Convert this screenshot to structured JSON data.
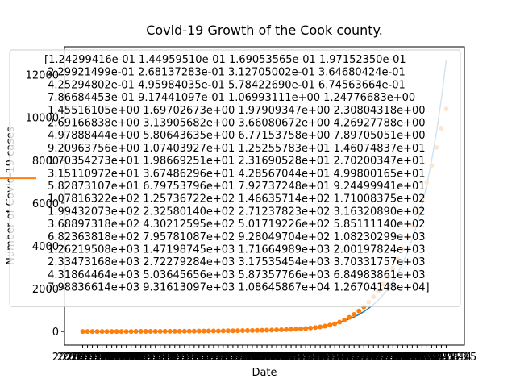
{
  "chart_data": {
    "type": "line",
    "title": "Covid-19 Growth of the Cook county.",
    "x_label": "Date",
    "y_label": "Number of Covid-19 cases",
    "categories": [
      "2020-03-01",
      "2020-03-02",
      "2020-03-03",
      "2020-03-04",
      "2020-03-05",
      "2020-03-06",
      "2020-03-07",
      "2020-03-08",
      "2020-03-09",
      "2020-03-10",
      "2020-03-11",
      "2020-03-12",
      "2020-03-13",
      "2020-03-14",
      "2020-03-15",
      "2020-03-16",
      "2020-03-17",
      "2020-03-18",
      "2020-03-19",
      "2020-03-20",
      "2020-03-21",
      "2020-03-22",
      "2020-03-23",
      "2020-03-24",
      "2020-03-25",
      "2020-03-26",
      "2020-03-27",
      "2020-03-28",
      "2020-03-29",
      "2020-03-30",
      "2020-03-31",
      "2020-04-01",
      "2020-04-02",
      "2020-04-03",
      "2020-04-04",
      "2020-04-05",
      "2020-04-06",
      "2020-04-07",
      "2020-04-08",
      "2020-04-09",
      "2020-04-10",
      "2020-04-11",
      "2020-04-12",
      "2020-04-13",
      "2020-04-14",
      "2020-04-15",
      "2020-04-16",
      "2020-04-17",
      "2020-04-18",
      "2020-04-19",
      "2020-04-20",
      "2020-04-21",
      "2020-04-22",
      "2020-04-23",
      "2020-04-24",
      "2020-04-25",
      "2020-04-26",
      "2020-04-27",
      "2020-04-28",
      "2020-04-29",
      "2020-04-30",
      "2020-05-01",
      "2020-05-02",
      "2020-05-03",
      "2020-05-04",
      "2020-05-05",
      "2020-05-06",
      "2020-05-07",
      "2020-05-08",
      "2020-05-09",
      "2020-05-10",
      "2020-05-11",
      "2020-05-12",
      "2020-05-13",
      "2020-05-14",
      "2020-05-15"
    ],
    "series": [
      {
        "type": "line",
        "color": "#1f77b4",
        "values": [
          0.124299416,
          0.14495951,
          0.169053565,
          0.19715235,
          0.229921499,
          0.268137283,
          0.312705002,
          0.364680424,
          0.425294802,
          0.495984035,
          0.57842269,
          0.674563664,
          0.786684453,
          0.917441097,
          1.06993111,
          1.24776683,
          1.45516105,
          1.69702673,
          1.97909347,
          2.30804318,
          2.69166838,
          3.13905682,
          3.66080672,
          4.26927788,
          4.97888444,
          5.80643635,
          6.77153758,
          7.89705051,
          9.20963756,
          10.7403927,
          12.5255783,
          14.6074837,
          17.0354273,
          19.8669251,
          23.1690528,
          27.0200347,
          31.5110972,
          36.7486296,
          42.8567044,
          49.9800165,
          58.2873107,
          67.9753796,
          79.2737248,
          92.4499941,
          107.816322,
          125.736722,
          146.635714,
          171.008375,
          199.432073,
          232.58014,
          271.237823,
          316.32089,
          368.897318,
          430.212595,
          501.719226,
          585.11114,
          682.363818,
          795.781087,
          928.049704,
          1082.30299,
          1262.19508,
          1471.98745,
          1716.64989,
          2001.97824,
          2334.73168,
          2722.79284,
          3175.35454,
          3703.31757,
          4318.64464,
          5036.45656,
          5873.57766,
          6849.83861,
          7988.36614,
          9316.13097,
          10864.5867,
          12670.4148
        ]
      },
      {
        "type": "scatter",
        "color": "#ff7f0e",
        "values": [
          0,
          0,
          0,
          1,
          1,
          1,
          2,
          2,
          3,
          3,
          4,
          5,
          5,
          6,
          7,
          8,
          9,
          10,
          11,
          12,
          13,
          14,
          16,
          18,
          20,
          22,
          24,
          26,
          28,
          31,
          34,
          37,
          40,
          43,
          47,
          51,
          55,
          60,
          65,
          70,
          76,
          82,
          90,
          100,
          110,
          125,
          140,
          160,
          185,
          215,
          250,
          300,
          360,
          440,
          540,
          660,
          800,
          960,
          1150,
          1370,
          1620,
          1900,
          2210,
          2560,
          2950,
          3380,
          3860,
          4380,
          4950,
          5570,
          6240,
          6970,
          7760,
          8600,
          9500,
          10400
        ]
      }
    ],
    "legend": {
      "color": "#ff7f0e",
      "lines": [
        "[1.24299416e-01 1.44959510e-01 1.69053565e-01 1.97152350e-01",
        " 2.29921499e-01 2.68137283e-01 3.12705002e-01 3.64680424e-01",
        " 4.25294802e-01 4.95984035e-01 5.78422690e-01 6.74563664e-01",
        " 7.86684453e-01 9.17441097e-01 1.06993111e+00 1.24776683e+00",
        " 1.45516105e+00 1.69702673e+00 1.97909347e+00 2.30804318e+00",
        " 2.69166838e+00 3.13905682e+00 3.66080672e+00 4.26927788e+00",
        " 4.97888444e+00 5.80643635e+00 6.77153758e+00 7.89705051e+00",
        " 9.20963756e+00 1.07403927e+01 1.25255783e+01 1.46074837e+01",
        " 1.70354273e+01 1.98669251e+01 2.31690528e+01 2.70200347e+01",
        " 3.15110972e+01 3.67486296e+01 4.28567044e+01 4.99800165e+01",
        " 5.82873107e+01 6.79753796e+01 7.92737248e+01 9.24499941e+01",
        " 1.07816322e+02 1.25736722e+02 1.46635714e+02 1.71008375e+02",
        " 1.99432073e+02 2.32580140e+02 2.71237823e+02 3.16320890e+02",
        " 3.68897318e+02 4.30212595e+02 5.01719226e+02 5.85111140e+02",
        " 6.82363818e+02 7.95781087e+02 9.28049704e+02 1.08230299e+03",
        " 1.26219508e+03 1.47198745e+03 1.71664989e+03 2.00197824e+03",
        " 2.33473168e+03 2.72279284e+03 3.17535454e+03 3.70331757e+03",
        " 4.31864464e+03 5.03645656e+03 5.87357766e+03 6.84983861e+03",
        " 7.98836614e+03 9.31613097e+03 1.08645867e+04 1.26704148e+04]"
      ]
    },
    "xlim": [
      -3.75,
      78.75
    ],
    "ylim": [
      -633.5,
      13303.7
    ],
    "yticks": [
      0,
      2000,
      4000,
      6000,
      8000,
      10000,
      12000
    ],
    "grid": false
  }
}
